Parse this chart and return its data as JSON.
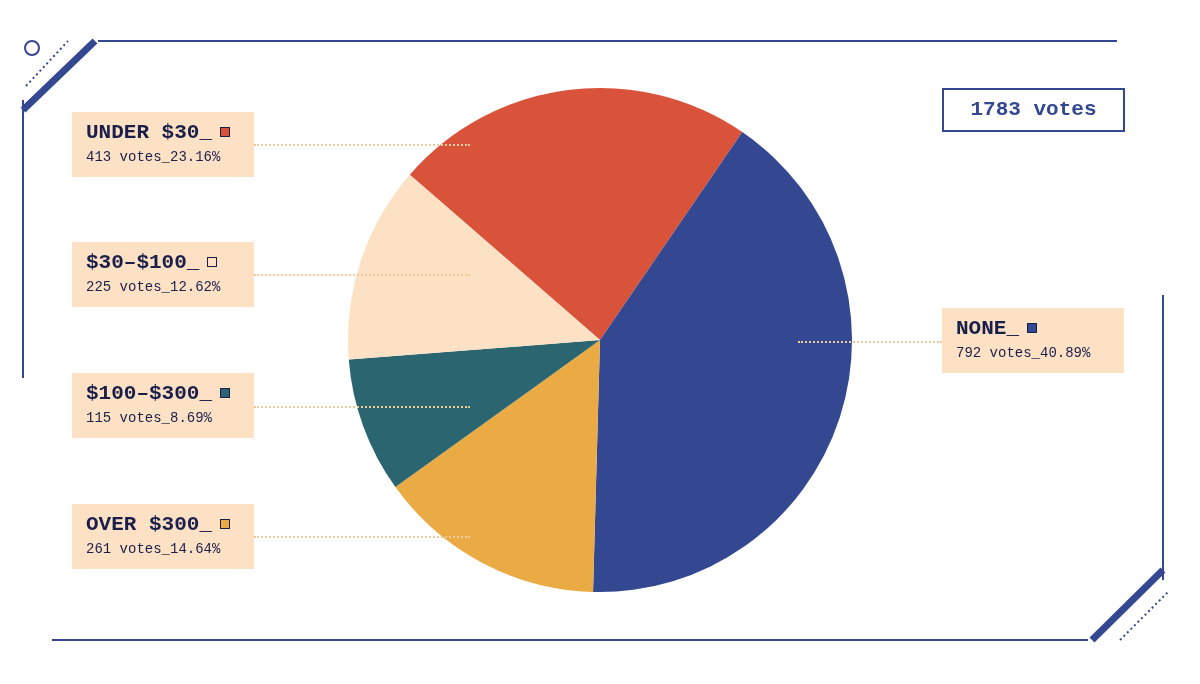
{
  "chart_data": {
    "type": "pie",
    "categories": [
      "UNDER $30_",
      "NONE_",
      "OVER $300_",
      "$100–$300_",
      "$30–$100_"
    ],
    "values": [
      23.16,
      40.89,
      14.64,
      8.69,
      12.62
    ],
    "colors": [
      "#d9533a",
      "#344891",
      "#eaab45",
      "#2b6670",
      "#fde1c5"
    ],
    "value_labels": [
      "413 votes_23.16%",
      "792 votes_40.89%",
      "261 votes_14.64%",
      "115 votes_8.69%",
      "225 votes_12.62%"
    ],
    "annotations": [
      "1783 votes"
    ],
    "legend": "left"
  }
}
